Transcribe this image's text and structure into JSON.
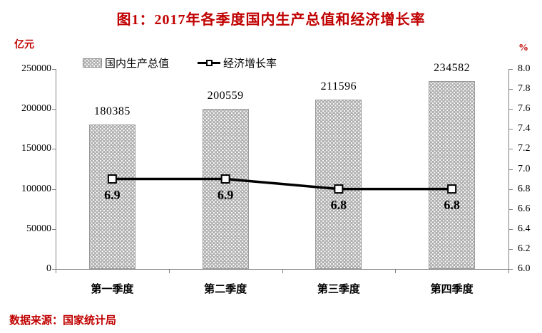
{
  "title": "图1：2017年各季度国内生产总值和经济增长率",
  "source": "数据来源：国家统计局",
  "legend": [
    {
      "label": "国内生产总值",
      "type": "bar"
    },
    {
      "label": "经济增长率",
      "type": "line"
    }
  ],
  "colors": {
    "accent_red": "#c00000",
    "bar_fill": "#b0b0b0",
    "line": "#000000",
    "axis": "#808080",
    "marker_fill": "#ffffff"
  },
  "chart_data": {
    "type": "bar+line combo",
    "title": "图1：2017年各季度国内生产总值和经济增长率",
    "categories": [
      "第一季度",
      "第二季度",
      "第三季度",
      "第四季度"
    ],
    "series": [
      {
        "name": "国内生产总值",
        "type": "bar",
        "axis": "left",
        "values": [
          180385,
          200559,
          211596,
          234582
        ]
      },
      {
        "name": "经济增长率",
        "type": "line",
        "axis": "right",
        "values": [
          6.9,
          6.9,
          6.8,
          6.8
        ]
      }
    ],
    "left_axis": {
      "label": "亿元",
      "min": 0,
      "max": 250000,
      "step": 50000,
      "ticks": [
        "0",
        "50000",
        "100000",
        "150000",
        "200000",
        "250000"
      ]
    },
    "right_axis": {
      "label": "%",
      "min": 6.0,
      "max": 8.0,
      "step": 0.2,
      "ticks": [
        "6.0",
        "6.2",
        "6.4",
        "6.6",
        "6.8",
        "7.0",
        "7.2",
        "7.4",
        "7.6",
        "7.8",
        "8.0"
      ]
    },
    "grid": false,
    "legend_position": "top"
  }
}
